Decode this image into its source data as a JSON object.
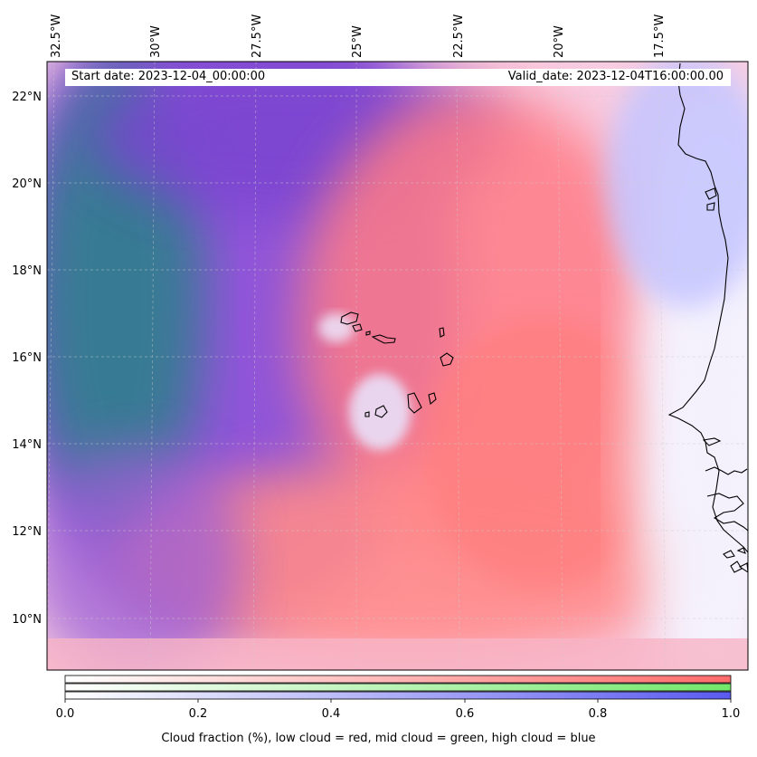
{
  "header": {
    "start_date": "Start date: 2023-12-04_00:00:00",
    "valid_date": "Valid_date: 2023-12-04T16:00:00.00"
  },
  "map": {
    "region": "Cabo Verde and West African coast",
    "longitude_ticks": [
      "32.5°W",
      "30°W",
      "27.5°W",
      "25°W",
      "22.5°W",
      "20°W",
      "17.5°W"
    ],
    "latitude_ticks": [
      "22°N",
      "20°N",
      "18°N",
      "16°N",
      "14°N",
      "12°N",
      "10°N"
    ],
    "colors": {
      "low_cloud": "#ff7a7a",
      "mid_cloud": "#7fe07a",
      "high_cloud": "#6c6cf0",
      "overlap_purple": "#8a4fd8",
      "coastline": "#000000"
    }
  },
  "colorbar": {
    "ticks": [
      "0.0",
      "0.2",
      "0.4",
      "0.6",
      "0.8",
      "1.0"
    ],
    "label": "Cloud fraction (%), low cloud = red, mid cloud = green, high cloud = blue",
    "bands": [
      {
        "name": "low cloud",
        "color": "#ff6b6b"
      },
      {
        "name": "mid cloud",
        "color": "#72e86a"
      },
      {
        "name": "high cloud",
        "color": "#5a5af0"
      }
    ]
  }
}
